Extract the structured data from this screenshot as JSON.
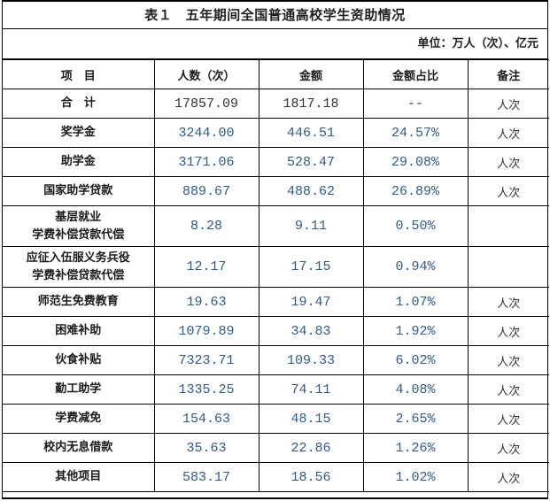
{
  "title": "表１　五年期间全国普通高校学生资助情况",
  "unit": "单位：万人（次）、亿元",
  "headers": [
    "项　目",
    "人数（次）",
    "金额",
    "金额占比",
    "备注"
  ],
  "rows": [
    {
      "name": "合　计",
      "count": "17857.09",
      "amount": "1817.18",
      "share": "--",
      "note": "人次"
    },
    {
      "name": "奖学金",
      "count": "3244.00",
      "amount": "446.51",
      "share": "24.57%",
      "note": "人次"
    },
    {
      "name": "助学金",
      "count": "3171.06",
      "amount": "528.47",
      "share": "29.08%",
      "note": "人次"
    },
    {
      "name": "国家助学贷款",
      "count": "889.67",
      "amount": "488.62",
      "share": "26.89%",
      "note": "人次"
    },
    {
      "name1": "基层就业",
      "name2": "学费补偿贷款代偿",
      "count": "8.28",
      "amount": "9.11",
      "share": "0.50%",
      "note": ""
    },
    {
      "name1": "应征入伍服义务兵役",
      "name2": "学费补偿贷款代偿",
      "count": "12.17",
      "amount": "17.15",
      "share": "0.94%",
      "note": ""
    },
    {
      "name": "师范生免费教育",
      "count": "19.63",
      "amount": "19.47",
      "share": "1.07%",
      "note": "人次"
    },
    {
      "name": "困难补助",
      "count": "1079.89",
      "amount": "34.83",
      "share": "1.92%",
      "note": "人次"
    },
    {
      "name": "伙食补贴",
      "count": "7323.71",
      "amount": "109.33",
      "share": "6.02%",
      "note": "人次"
    },
    {
      "name": "勤工助学",
      "count": "1335.25",
      "amount": "74.11",
      "share": "4.08%",
      "note": "人次"
    },
    {
      "name": "学费减免",
      "count": "154.63",
      "amount": "48.15",
      "share": "2.65%",
      "note": "人次"
    },
    {
      "name": "校内无息借款",
      "count": "35.63",
      "amount": "22.86",
      "share": "1.26%",
      "note": "人次"
    },
    {
      "name": "其他项目",
      "count": "583.17",
      "amount": "18.56",
      "share": "1.02%",
      "note": "人次"
    }
  ]
}
